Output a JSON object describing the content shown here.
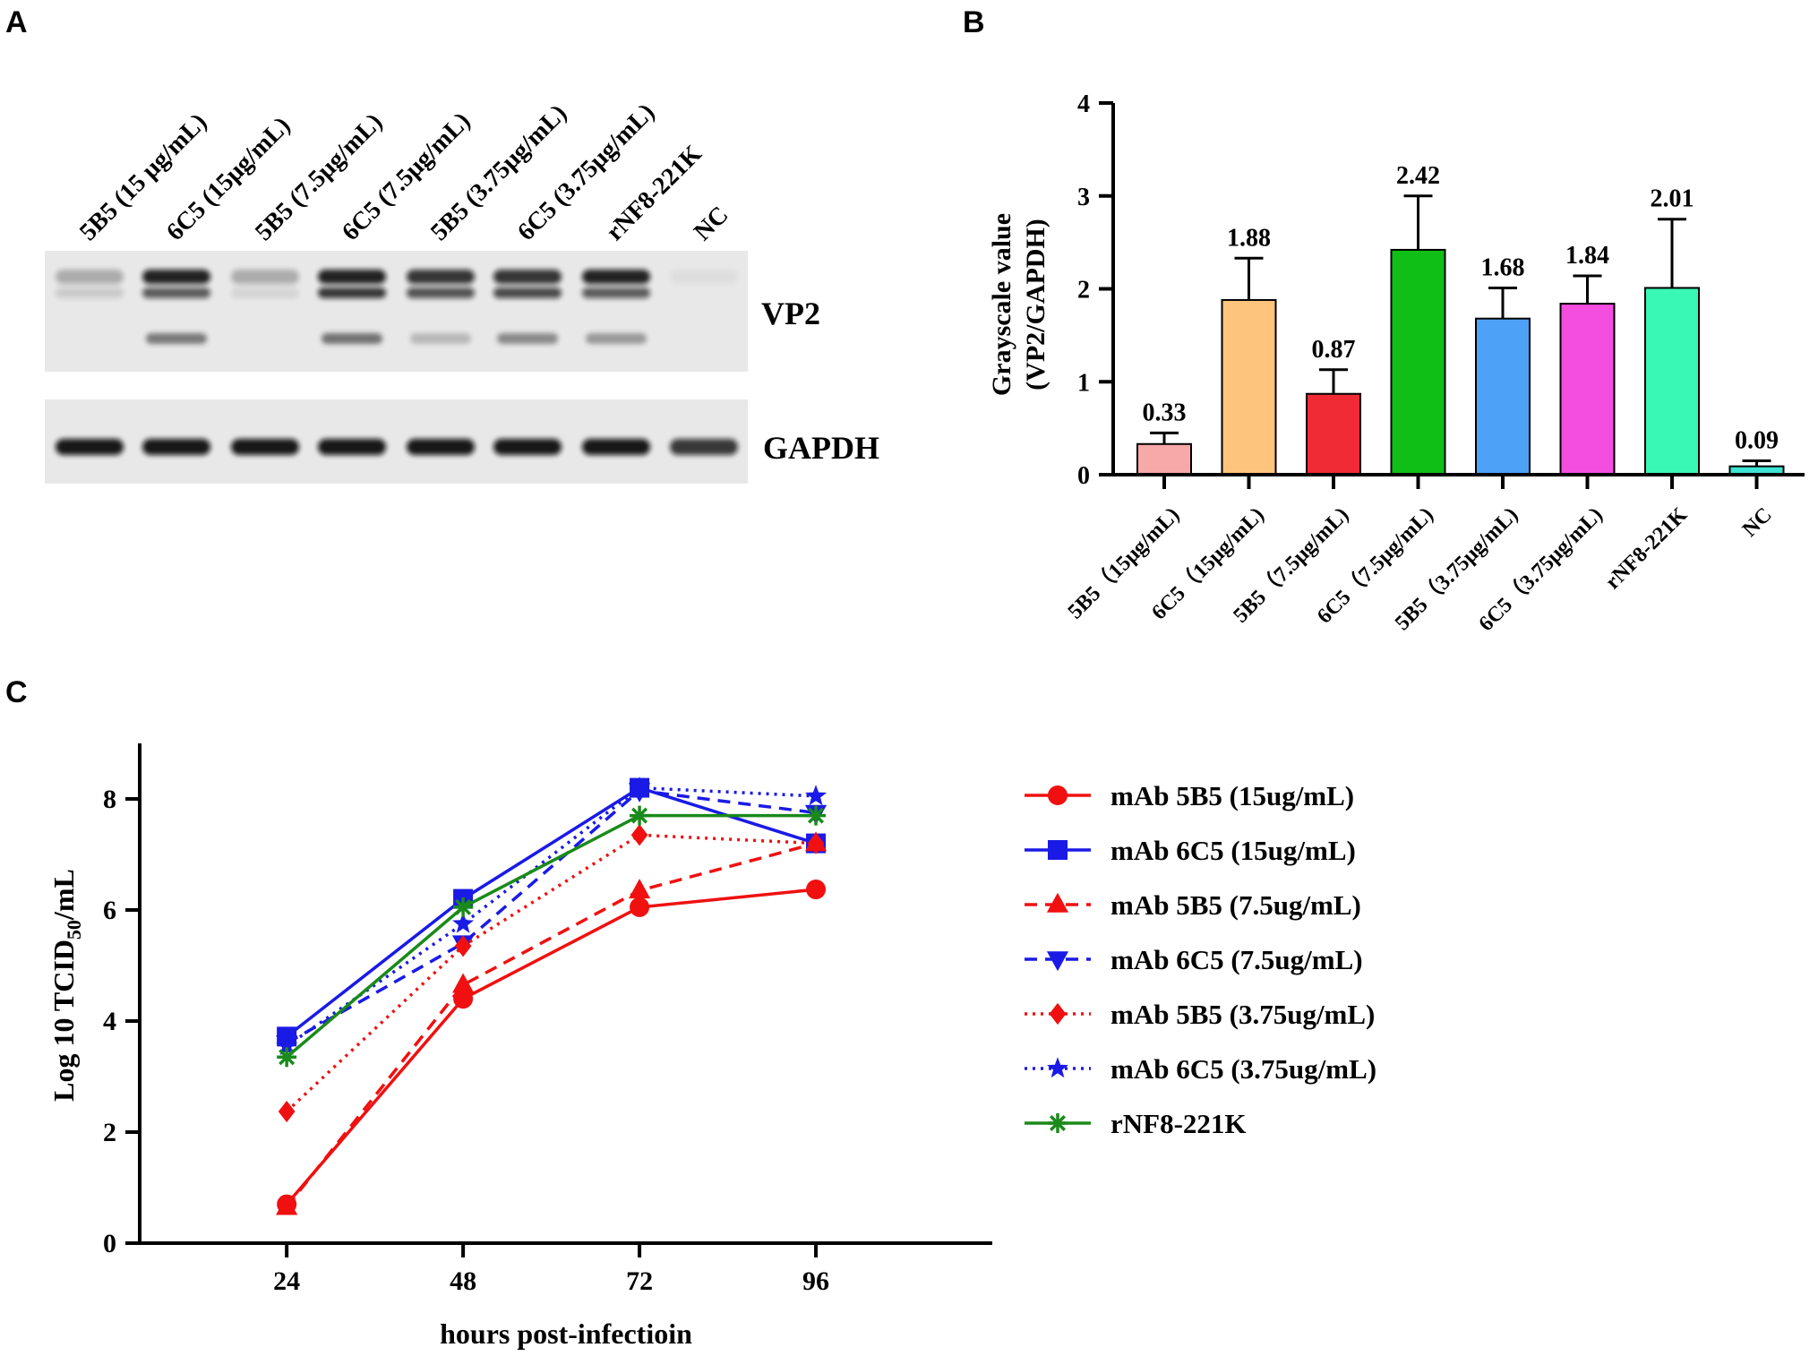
{
  "panels": {
    "a": "A",
    "b": "B",
    "c": "C"
  },
  "western_blot": {
    "lanes": [
      "5B5 (15 μg/mL)",
      "6C5 (15μg/mL)",
      "5B5 (7.5μg/mL)",
      "6C5 (7.5μg/mL)",
      "5B5 (3.75μg/mL)",
      "6C5 (3.75μg/mL)",
      "rNF8-221K",
      "NC"
    ],
    "vp2_label": "VP2",
    "gapdh_label": "GAPDH"
  },
  "chart_data": [
    {
      "type": "bar",
      "panel": "B",
      "ylabel_line1": "Grayscale value",
      "ylabel_line2": "(VP2/GAPDH)",
      "ylim": [
        0,
        4
      ],
      "yticks": [
        "0",
        "1",
        "2",
        "3",
        "4"
      ],
      "categories": [
        "5B5（15μg/mL)",
        "6C5（15μg/mL)",
        "5B5（7.5μg/mL)",
        "6C5（7.5μg/mL)",
        "5B5（3.75μg/mL)",
        "6C5（3.75μg/mL)",
        "rNF8-221K",
        "NC"
      ],
      "values": [
        0.33,
        1.88,
        0.87,
        2.42,
        1.68,
        1.84,
        2.01,
        0.09
      ],
      "value_labels": [
        "0.33",
        "1.88",
        "0.87",
        "2.42",
        "1.68",
        "1.84",
        "2.01",
        "0.09"
      ],
      "errors": [
        0.12,
        0.45,
        0.26,
        0.58,
        0.33,
        0.3,
        0.74,
        0.06
      ],
      "colors": [
        "#f7a8a8",
        "#fdc47e",
        "#f02b35",
        "#0fbf16",
        "#4da2f7",
        "#f44ee0",
        "#39f8b6",
        "#3ce3d2"
      ]
    },
    {
      "type": "line",
      "panel": "C",
      "xlabel": "hours post-infectioin",
      "ylabel_main": "Log 10 TCID",
      "ylabel_sub": "50",
      "ylabel_end": "/mL",
      "x": [
        24,
        48,
        72,
        96
      ],
      "xticks": [
        "24",
        "48",
        "72",
        "96"
      ],
      "xlim": [
        4,
        120
      ],
      "ylim": [
        0,
        9
      ],
      "yticks": [
        "0",
        "2",
        "4",
        "6",
        "8"
      ],
      "series": [
        {
          "name": "mAb 5B5 (15ug/mL)",
          "values": [
            0.7,
            4.4,
            6.05,
            6.37
          ],
          "color": "#f01010",
          "dash": "solid",
          "marker": "circle"
        },
        {
          "name": "mAb 6C5 (15ug/mL)",
          "values": [
            3.72,
            6.2,
            8.2,
            7.2
          ],
          "color": "#1a1ae6",
          "dash": "solid",
          "marker": "square"
        },
        {
          "name": "mAb 5B5 (7.5ug/mL)",
          "values": [
            0.65,
            4.65,
            6.35,
            7.2
          ],
          "color": "#f01010",
          "dash": "dashed",
          "marker": "triangle"
        },
        {
          "name": "mAb 6C5 (7.5ug/mL)",
          "values": [
            3.6,
            5.4,
            8.15,
            7.75
          ],
          "color": "#1a1ae6",
          "dash": "dashed",
          "marker": "triangle-down"
        },
        {
          "name": "mAb 5B5 (3.75ug/mL)",
          "values": [
            2.37,
            5.35,
            7.35,
            7.2
          ],
          "color": "#f01010",
          "dash": "dotted",
          "marker": "diamond"
        },
        {
          "name": "mAb 6C5 (3.75ug/mL)",
          "values": [
            3.55,
            5.75,
            8.2,
            8.05
          ],
          "color": "#1a1ae6",
          "dash": "dotted",
          "marker": "star"
        },
        {
          "name": "rNF8-221K",
          "values": [
            3.35,
            6.05,
            7.7,
            7.7
          ],
          "color": "#1a8a1a",
          "dash": "solid",
          "marker": "asterisk"
        }
      ]
    }
  ]
}
